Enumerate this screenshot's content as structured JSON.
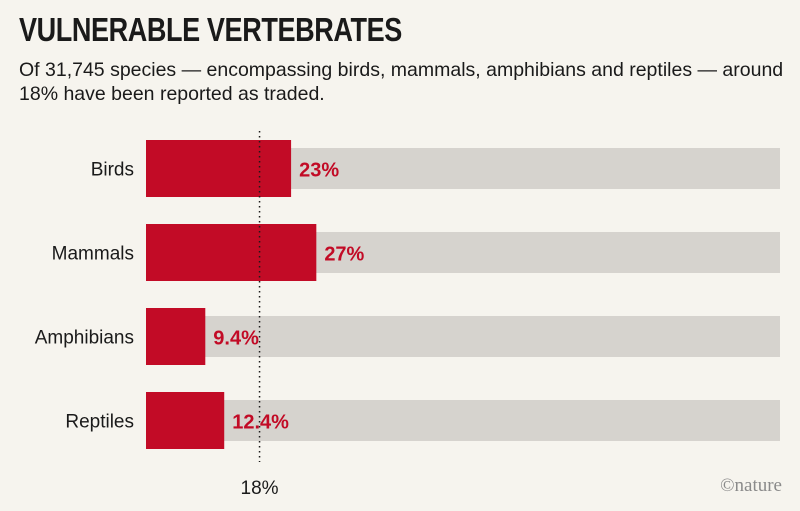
{
  "header": {
    "title": "VULNERABLE VERTEBRATES",
    "subtitle": "Of 31,745 species — encompassing birds, mammals, amphibians and reptiles — around 18% have been reported as traded."
  },
  "credit": {
    "symbol": "©",
    "text": "nature"
  },
  "colors": {
    "bar": "#c20b26",
    "track": "#d6d3ce",
    "background": "#f6f4ee"
  },
  "chart_data": {
    "type": "bar",
    "orientation": "horizontal",
    "categories": [
      "Birds",
      "Mammals",
      "Amphibians",
      "Reptiles"
    ],
    "values": [
      23,
      27,
      9.4,
      12.4
    ],
    "value_labels": [
      "23%",
      "27%",
      "9.4%",
      "12.4%"
    ],
    "xlim": [
      0,
      100
    ],
    "unit": "%",
    "reference_line": {
      "value": 18,
      "label": "18%",
      "style": "dotted"
    },
    "track_value": 100,
    "grid": false,
    "legend": "none"
  }
}
